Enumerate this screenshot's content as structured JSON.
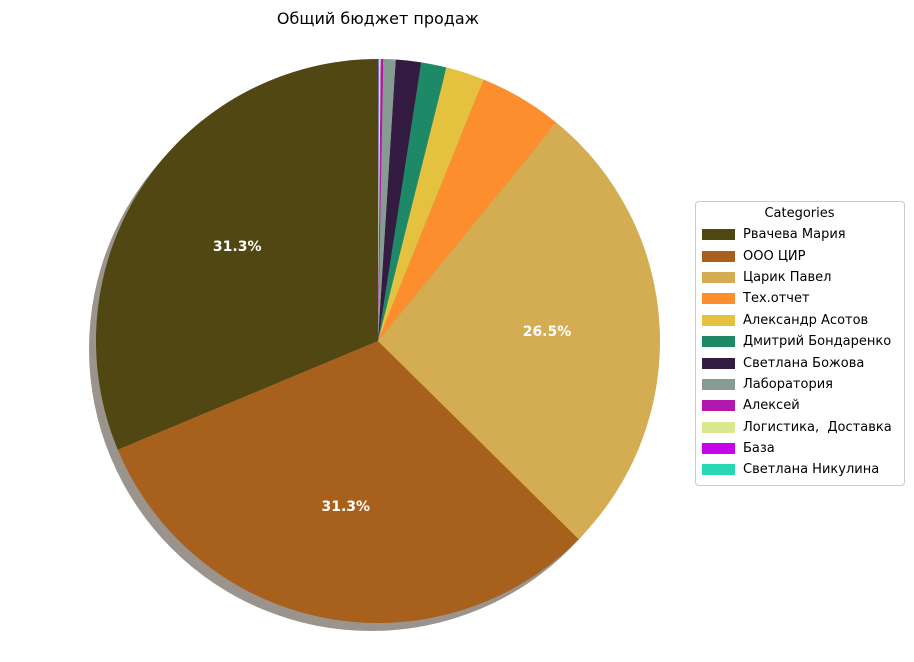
{
  "chart_data": {
    "type": "pie",
    "title": "Общий бюджет продаж",
    "legend_title": "Categories",
    "legend_position": "right",
    "start_angle_deg": 90,
    "direction": "counterclockwise",
    "shadow": true,
    "shadow_color": "#9a948c",
    "pct_label_color": "#ffffff",
    "slices": [
      {
        "label": "Рвачева Мария",
        "value_pct": 31.3,
        "color": "#514713",
        "pct_label": "31.3%"
      },
      {
        "label": "ООО ЦИР",
        "value_pct": 31.3,
        "color": "#a8611c",
        "pct_label": "31.3%"
      },
      {
        "label": "Царик Павел",
        "value_pct": 26.5,
        "color": "#d4ac51",
        "pct_label": "26.5%"
      },
      {
        "label": "Тех.отчет",
        "value_pct": 4.8,
        "color": "#fd8e2d",
        "pct_label": ""
      },
      {
        "label": "Александр Асотов",
        "value_pct": 2.2,
        "color": "#e4c23f",
        "pct_label": ""
      },
      {
        "label": "Дмитрий Бондаренко",
        "value_pct": 1.45,
        "color": "#1d8966",
        "pct_label": ""
      },
      {
        "label": "Светлана Божова",
        "value_pct": 1.45,
        "color": "#331b42",
        "pct_label": ""
      },
      {
        "label": "Лаборатория",
        "value_pct": 0.7,
        "color": "#869b91",
        "pct_label": ""
      },
      {
        "label": "Алексей",
        "value_pct": 0.15,
        "color": "#b317ae",
        "pct_label": ""
      },
      {
        "label": "Логистика,  Доставка",
        "value_pct": 0.09,
        "color": "#dce88f",
        "pct_label": ""
      },
      {
        "label": "База",
        "value_pct": 0.03,
        "color": "#c604eb",
        "pct_label": ""
      },
      {
        "label": "Светлана Никулина",
        "value_pct": 0.03,
        "color": "#27d8b2",
        "pct_label": ""
      }
    ]
  }
}
